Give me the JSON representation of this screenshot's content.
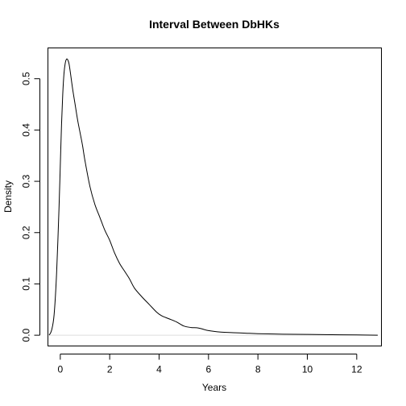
{
  "chart_data": {
    "type": "line",
    "title": "Interval Between DbHKs",
    "xlabel": "Years",
    "ylabel": "Density",
    "xlim": [
      -0.5,
      13.0
    ],
    "ylim": [
      -0.021,
      0.56
    ],
    "x_ticks": [
      0,
      2,
      4,
      6,
      8,
      10,
      12
    ],
    "x_tick_labels": [
      "0",
      "2",
      "4",
      "6",
      "8",
      "10",
      "12"
    ],
    "y_ticks": [
      0.0,
      0.1,
      0.2,
      0.3,
      0.4,
      0.5
    ],
    "y_tick_labels": [
      "0.0",
      "0.1",
      "0.2",
      "0.3",
      "0.4",
      "0.5"
    ],
    "grid": false,
    "series": [
      {
        "x": [
          -0.45,
          -0.35,
          -0.25,
          -0.15,
          -0.05,
          0.0,
          0.05,
          0.1,
          0.15,
          0.2,
          0.25,
          0.3,
          0.35,
          0.4,
          0.5,
          0.6,
          0.7,
          0.8,
          0.9,
          1.0,
          1.2,
          1.4,
          1.6,
          1.8,
          2.0,
          2.2,
          2.4,
          2.6,
          2.8,
          3.0,
          3.3,
          3.6,
          3.9,
          4.1,
          4.4,
          4.7,
          5.0,
          5.3,
          5.6,
          6.0,
          6.5,
          7.0,
          7.5,
          8.0,
          9.0,
          10.0,
          11.0,
          12.0,
          12.85
        ],
        "y": [
          0.0,
          0.01,
          0.04,
          0.12,
          0.25,
          0.33,
          0.41,
          0.47,
          0.51,
          0.53,
          0.538,
          0.537,
          0.53,
          0.515,
          0.48,
          0.45,
          0.42,
          0.395,
          0.37,
          0.34,
          0.29,
          0.255,
          0.23,
          0.205,
          0.185,
          0.16,
          0.14,
          0.125,
          0.11,
          0.092,
          0.075,
          0.06,
          0.045,
          0.038,
          0.032,
          0.026,
          0.018,
          0.015,
          0.014,
          0.009,
          0.006,
          0.005,
          0.004,
          0.003,
          0.002,
          0.0015,
          0.001,
          0.0005,
          0.0
        ]
      }
    ]
  }
}
